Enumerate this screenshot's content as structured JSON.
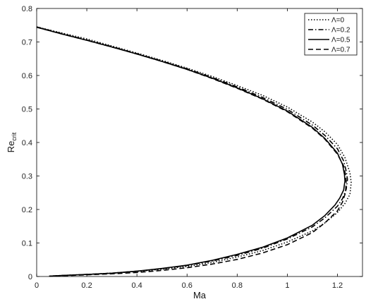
{
  "chart_data": {
    "type": "line",
    "xlabel": "Ma",
    "ylabel": {
      "main": "Re",
      "sub": "crit"
    },
    "xlim": [
      0,
      1.3
    ],
    "ylim": [
      0,
      0.8
    ],
    "xticks": [
      "0",
      "0.2",
      "0.4",
      "0.6",
      "0.8",
      "1",
      "1.2"
    ],
    "xtick_values": [
      0,
      0.2,
      0.4,
      0.6,
      0.8,
      1,
      1.2
    ],
    "yticks": [
      "0",
      "0.1",
      "0.2",
      "0.3",
      "0.4",
      "0.5",
      "0.6",
      "0.7",
      "0.8"
    ],
    "ytick_values": [
      0,
      0.1,
      0.2,
      0.3,
      0.4,
      0.5,
      0.6,
      0.7,
      0.8
    ],
    "grid": false,
    "legend_position": "top-right",
    "series": [
      {
        "name": "Λ=0",
        "dash": "1.5,2.5",
        "x": [
          0.0,
          0.1,
          0.2,
          0.3,
          0.4,
          0.5,
          0.6,
          0.7,
          0.8,
          0.9,
          1.0,
          1.1,
          1.15,
          1.2,
          1.23,
          1.25,
          1.255,
          1.25,
          1.23,
          1.2,
          1.15,
          1.1,
          1.0,
          0.9,
          0.8,
          0.7,
          0.6,
          0.5,
          0.4,
          0.3,
          0.2,
          0.1,
          0.05
        ],
        "y": [
          0.745,
          0.727,
          0.709,
          0.688,
          0.667,
          0.645,
          0.622,
          0.597,
          0.57,
          0.541,
          0.506,
          0.461,
          0.432,
          0.394,
          0.355,
          0.31,
          0.28,
          0.245,
          0.218,
          0.191,
          0.16,
          0.136,
          0.103,
          0.077,
          0.058,
          0.042,
          0.03,
          0.022,
          0.015,
          0.01,
          0.006,
          0.003,
          0.001
        ]
      },
      {
        "name": "Λ=0.2",
        "dash": "7,3,1.5,3",
        "x": [
          0.0,
          0.1,
          0.2,
          0.3,
          0.4,
          0.5,
          0.6,
          0.7,
          0.8,
          0.9,
          1.0,
          1.1,
          1.15,
          1.2,
          1.225,
          1.235,
          1.24,
          1.235,
          1.22,
          1.2,
          1.15,
          1.1,
          1.0,
          0.9,
          0.8,
          0.7,
          0.6,
          0.5,
          0.4,
          0.3,
          0.2,
          0.1,
          0.05
        ],
        "y": [
          0.745,
          0.725,
          0.706,
          0.686,
          0.665,
          0.643,
          0.62,
          0.594,
          0.566,
          0.535,
          0.499,
          0.452,
          0.421,
          0.381,
          0.345,
          0.315,
          0.29,
          0.26,
          0.232,
          0.21,
          0.175,
          0.148,
          0.112,
          0.084,
          0.063,
          0.046,
          0.033,
          0.023,
          0.016,
          0.01,
          0.006,
          0.003,
          0.001
        ]
      },
      {
        "name": "Λ=0.5",
        "dash": "",
        "x": [
          0.0,
          0.1,
          0.2,
          0.3,
          0.4,
          0.5,
          0.6,
          0.7,
          0.8,
          0.9,
          1.0,
          1.1,
          1.15,
          1.2,
          1.22,
          1.228,
          1.23,
          1.225,
          1.21,
          1.19,
          1.15,
          1.1,
          1.0,
          0.9,
          0.8,
          0.7,
          0.6,
          0.5,
          0.4,
          0.3,
          0.2,
          0.1,
          0.05
        ],
        "y": [
          0.744,
          0.724,
          0.705,
          0.685,
          0.664,
          0.642,
          0.618,
          0.592,
          0.563,
          0.531,
          0.494,
          0.445,
          0.412,
          0.368,
          0.335,
          0.305,
          0.285,
          0.258,
          0.235,
          0.213,
          0.182,
          0.153,
          0.115,
          0.087,
          0.066,
          0.048,
          0.034,
          0.024,
          0.016,
          0.01,
          0.006,
          0.003,
          0.001
        ]
      },
      {
        "name": "Λ=0.7",
        "dash": "7,4",
        "x": [
          0.0,
          0.1,
          0.2,
          0.3,
          0.4,
          0.5,
          0.6,
          0.7,
          0.8,
          0.9,
          1.0,
          1.1,
          1.15,
          1.2,
          1.225,
          1.233,
          1.235,
          1.232,
          1.22,
          1.2,
          1.15,
          1.1,
          1.0,
          0.9,
          0.8,
          0.7,
          0.6,
          0.5,
          0.4,
          0.3,
          0.2,
          0.1,
          0.05
        ],
        "y": [
          0.744,
          0.724,
          0.705,
          0.685,
          0.664,
          0.642,
          0.618,
          0.591,
          0.562,
          0.53,
          0.492,
          0.443,
          0.41,
          0.365,
          0.33,
          0.3,
          0.278,
          0.25,
          0.222,
          0.196,
          0.16,
          0.131,
          0.095,
          0.07,
          0.051,
          0.037,
          0.026,
          0.018,
          0.012,
          0.008,
          0.005,
          0.002,
          0.001
        ]
      }
    ]
  }
}
